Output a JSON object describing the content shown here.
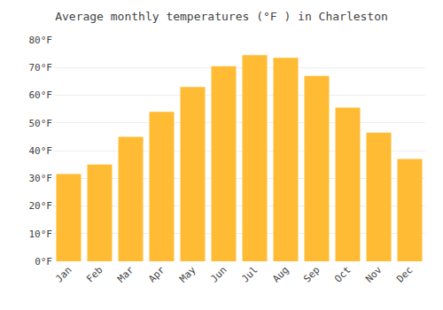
{
  "chart_data": {
    "type": "bar",
    "title": "Average monthly temperatures (°F ) in Charleston",
    "categories": [
      "Jan",
      "Feb",
      "Mar",
      "Apr",
      "May",
      "Jun",
      "Jul",
      "Aug",
      "Sep",
      "Oct",
      "Nov",
      "Dec"
    ],
    "values": [
      31.5,
      35.0,
      45.0,
      54.0,
      63.0,
      70.5,
      74.5,
      73.5,
      67.0,
      55.5,
      46.5,
      37.0
    ],
    "color": "#FFBB33",
    "ylim": [
      0,
      80
    ],
    "yticks": [
      {
        "value": 0,
        "label": "0°F"
      },
      {
        "value": 10,
        "label": "10°F"
      },
      {
        "value": 20,
        "label": "20°F"
      },
      {
        "value": 30,
        "label": "30°F"
      },
      {
        "value": 40,
        "label": "40°F"
      },
      {
        "value": 50,
        "label": "50°F"
      },
      {
        "value": 60,
        "label": "60°F"
      },
      {
        "value": 70,
        "label": "70°F"
      },
      {
        "value": 80,
        "label": "80°F"
      }
    ],
    "grid": true
  }
}
